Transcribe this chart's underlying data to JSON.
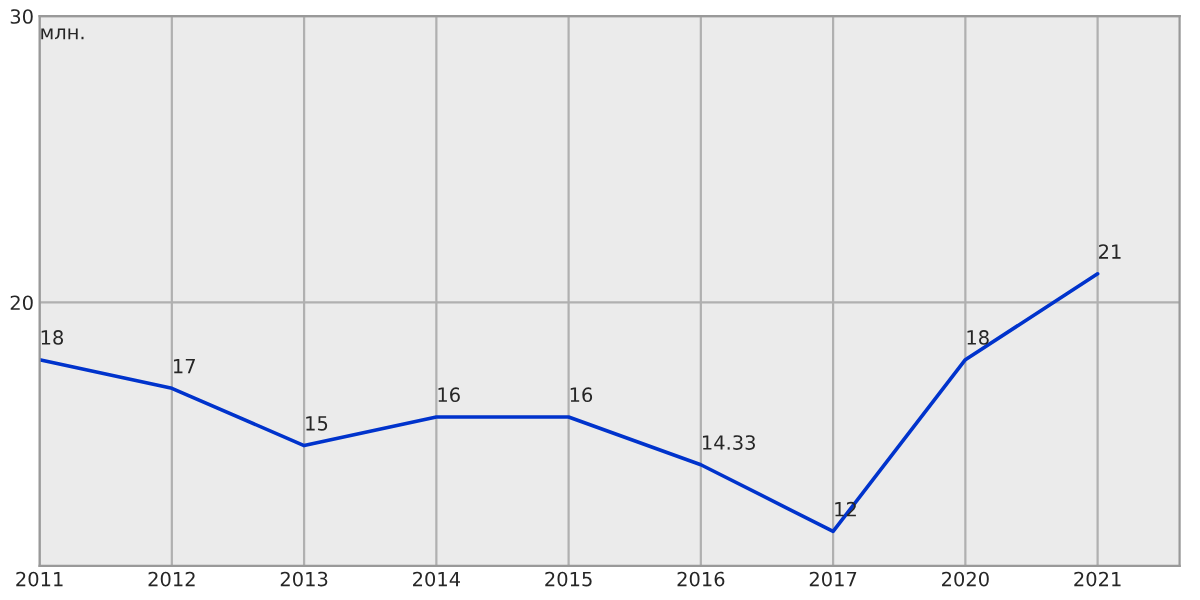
{
  "chart_data": {
    "type": "line",
    "ylabel": "млн.",
    "categories": [
      "2011",
      "2012",
      "2013",
      "2014",
      "2015",
      "2016",
      "2017",
      "2020",
      "2021"
    ],
    "series": [
      {
        "color": "#0033cc",
        "values": [
          18,
          17,
          15,
          16,
          16,
          14.33,
          12,
          18,
          21
        ]
      }
    ],
    "ylim": [
      10.8,
      30
    ],
    "yticks": [
      20,
      30
    ],
    "grid": true,
    "data_labels": true,
    "marker": "none",
    "line_style": "solid",
    "legend": false
  }
}
